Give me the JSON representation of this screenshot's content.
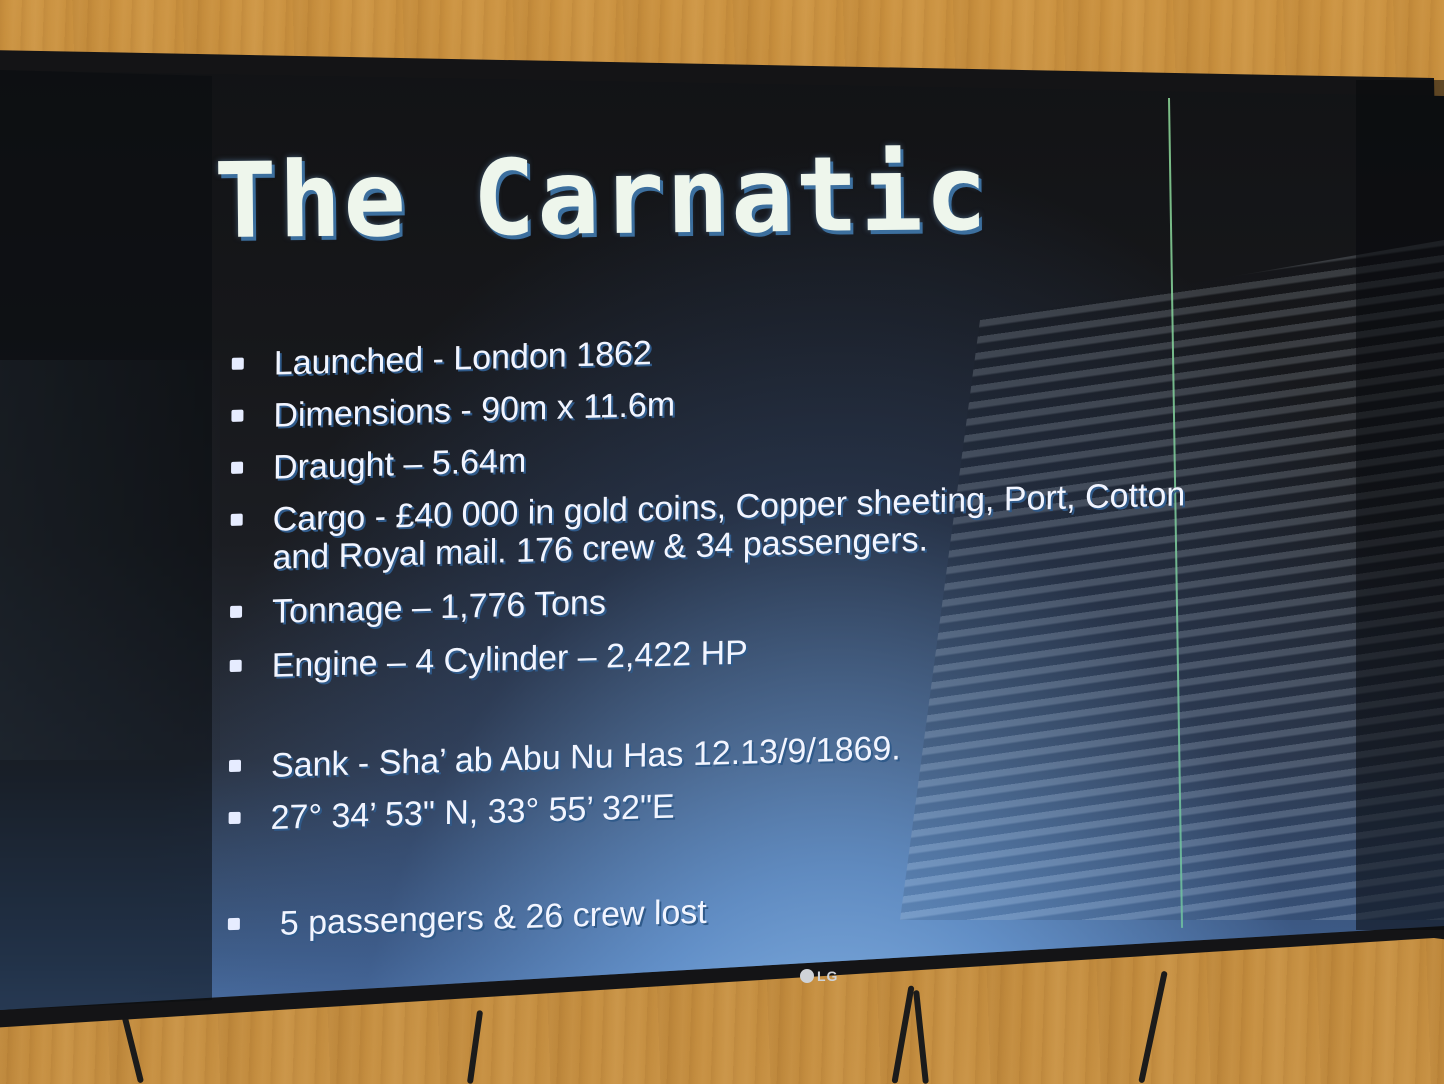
{
  "slide": {
    "title": "The Carnatic",
    "bullets": [
      {
        "text": "Launched - London 1862"
      },
      {
        "text": "Dimensions - 90m x 11.6m"
      },
      {
        "text": " Draught – 5.64m"
      },
      {
        "text": "Cargo - £40 000 in gold coins, Copper sheeting, Port, Cotton"
      },
      {
        "text": "and Royal mail. 176 crew & 34 passengers."
      },
      {
        "text": "Tonnage – 1,776 Tons"
      },
      {
        "text": "Engine – 4 Cylinder – 2,422 HP"
      },
      {
        "text": "Sank - Sha’ ab Abu Nu Has 12.13/9/1869."
      },
      {
        "text": "27° 34’ 53\" N, 33° 55’ 32\"E"
      },
      {
        "text": "5 passengers & 26 crew lost"
      }
    ]
  },
  "tv": {
    "brand": "LG"
  },
  "colors": {
    "wall": "#c48d3f",
    "bezel": "#141416",
    "title_text": "#eef6ec",
    "title_shadow": "#3c6f9e",
    "body_text": "#f2f5ff",
    "screen_glow": "#5b86c4"
  }
}
